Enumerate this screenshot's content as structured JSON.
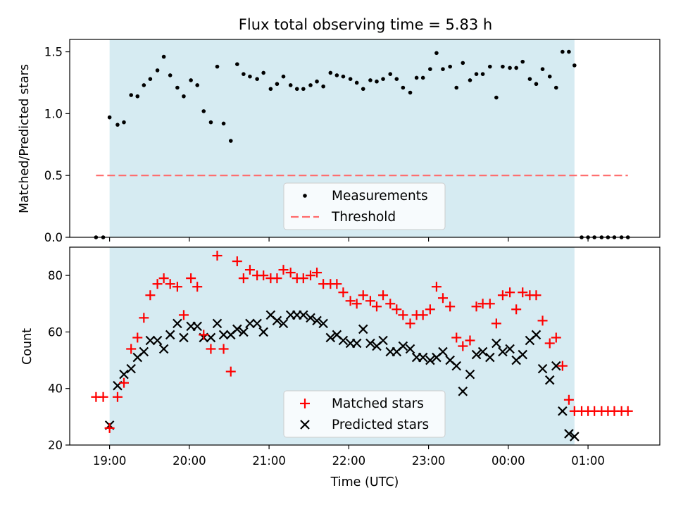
{
  "chart_data": [
    {
      "type": "scatter",
      "title": "Flux total observing time = 5.83 h",
      "xlabel": "",
      "ylabel": "Matched/Predicted stars",
      "xlim": [
        18.5,
        25.9
      ],
      "ylim": [
        0,
        1.6
      ],
      "yticks": [
        0.0,
        0.5,
        1.0,
        1.5
      ],
      "ytick_labels": [
        "0.0",
        "0.5",
        "1.0",
        "1.5"
      ],
      "shaded_span": [
        19.0,
        24.83
      ],
      "threshold": {
        "name": "Threshold",
        "y": 0.5,
        "x": [
          18.83,
          25.5
        ]
      },
      "legend": {
        "placement": "lower center",
        "entries": [
          "Measurements",
          "Threshold"
        ]
      },
      "series": [
        {
          "name": "Measurements",
          "x": [
            18.83,
            18.92,
            19.0,
            19.1,
            19.18,
            19.27,
            19.35,
            19.43,
            19.51,
            19.6,
            19.68,
            19.76,
            19.85,
            19.93,
            20.02,
            20.1,
            20.18,
            20.27,
            20.35,
            20.43,
            20.52,
            20.6,
            20.68,
            20.76,
            20.85,
            20.93,
            21.02,
            21.1,
            21.18,
            21.27,
            21.35,
            21.43,
            21.52,
            21.6,
            21.68,
            21.77,
            21.85,
            21.93,
            22.02,
            22.1,
            22.18,
            22.27,
            22.35,
            22.43,
            22.52,
            22.6,
            22.68,
            22.77,
            22.85,
            22.93,
            23.02,
            23.1,
            23.18,
            23.27,
            23.35,
            23.43,
            23.52,
            23.6,
            23.68,
            23.77,
            23.85,
            23.93,
            24.02,
            24.1,
            24.18,
            24.27,
            24.35,
            24.43,
            24.52,
            24.6,
            24.68,
            24.76,
            24.83,
            24.92,
            25.0,
            25.08,
            25.17,
            25.25,
            25.33,
            25.42,
            25.5
          ],
          "y": [
            0.0,
            0.0,
            0.97,
            0.91,
            0.93,
            1.15,
            1.14,
            1.23,
            1.28,
            1.35,
            1.46,
            1.31,
            1.21,
            1.14,
            1.27,
            1.23,
            1.02,
            0.93,
            1.38,
            0.92,
            0.78,
            1.4,
            1.32,
            1.3,
            1.28,
            1.33,
            1.2,
            1.24,
            1.3,
            1.23,
            1.2,
            1.2,
            1.23,
            1.26,
            1.22,
            1.33,
            1.31,
            1.3,
            1.28,
            1.25,
            1.2,
            1.27,
            1.26,
            1.28,
            1.32,
            1.28,
            1.21,
            1.17,
            1.29,
            1.29,
            1.36,
            1.49,
            1.36,
            1.38,
            1.21,
            1.41,
            1.27,
            1.32,
            1.32,
            1.38,
            1.13,
            1.38,
            1.37,
            1.37,
            1.42,
            1.28,
            1.24,
            1.36,
            1.3,
            1.21,
            1.5,
            1.5,
            1.39,
            0.0,
            0.0,
            0.0,
            0.0,
            0.0,
            0.0,
            0.0,
            0.0
          ],
          "color": "#000000"
        }
      ]
    },
    {
      "type": "scatter",
      "title": "",
      "xlabel": "Time (UTC)",
      "ylabel": "Count",
      "xlim": [
        18.5,
        25.9
      ],
      "ylim": [
        20,
        90
      ],
      "yticks": [
        20,
        40,
        60,
        80
      ],
      "ytick_labels": [
        "20",
        "40",
        "60",
        "80"
      ],
      "xticks": [
        19,
        20,
        21,
        22,
        23,
        24,
        25
      ],
      "xtick_labels": [
        "19:00",
        "20:00",
        "21:00",
        "22:00",
        "23:00",
        "00:00",
        "01:00"
      ],
      "shaded_span": [
        19.0,
        24.83
      ],
      "legend": {
        "placement": "lower center",
        "entries": [
          "Matched stars",
          "Predicted stars"
        ]
      },
      "series": [
        {
          "name": "Matched stars",
          "marker": "plus",
          "color": "#ff0000",
          "x": [
            18.83,
            18.92,
            19.0,
            19.1,
            19.18,
            19.27,
            19.35,
            19.43,
            19.51,
            19.6,
            19.68,
            19.76,
            19.85,
            19.93,
            20.02,
            20.1,
            20.18,
            20.27,
            20.35,
            20.43,
            20.52,
            20.6,
            20.68,
            20.76,
            20.85,
            20.93,
            21.02,
            21.1,
            21.18,
            21.27,
            21.35,
            21.43,
            21.52,
            21.6,
            21.68,
            21.77,
            21.85,
            21.93,
            22.02,
            22.1,
            22.18,
            22.27,
            22.35,
            22.43,
            22.52,
            22.6,
            22.68,
            22.77,
            22.85,
            22.93,
            23.02,
            23.1,
            23.18,
            23.27,
            23.35,
            23.43,
            23.52,
            23.6,
            23.68,
            23.77,
            23.85,
            23.93,
            24.02,
            24.1,
            24.18,
            24.27,
            24.35,
            24.43,
            24.52,
            24.6,
            24.68,
            24.76,
            24.83,
            24.92,
            25.0,
            25.08,
            25.17,
            25.25,
            25.33,
            25.42,
            25.5
          ],
          "y": [
            37,
            37,
            26,
            37,
            42,
            54,
            58,
            65,
            73,
            77,
            79,
            77,
            76,
            66,
            79,
            76,
            59,
            54,
            87,
            54,
            46,
            85,
            79,
            82,
            80,
            80,
            79,
            79,
            82,
            81,
            79,
            79,
            80,
            81,
            77,
            77,
            77,
            74,
            71,
            70,
            73,
            71,
            69,
            73,
            70,
            68,
            66,
            63,
            66,
            66,
            68,
            76,
            72,
            69,
            58,
            55,
            57,
            69,
            70,
            70,
            63,
            73,
            74,
            68,
            74,
            73,
            73,
            64,
            56,
            58,
            48,
            36,
            32,
            32,
            32,
            32,
            32,
            32,
            32,
            32,
            32
          ]
        },
        {
          "name": "Predicted stars",
          "marker": "x",
          "color": "#000000",
          "x": [
            19.0,
            19.1,
            19.18,
            19.27,
            19.35,
            19.43,
            19.51,
            19.6,
            19.68,
            19.76,
            19.85,
            19.93,
            20.02,
            20.1,
            20.18,
            20.27,
            20.35,
            20.43,
            20.52,
            20.6,
            20.68,
            20.76,
            20.85,
            20.93,
            21.02,
            21.1,
            21.18,
            21.27,
            21.35,
            21.43,
            21.52,
            21.6,
            21.68,
            21.77,
            21.85,
            21.93,
            22.02,
            22.1,
            22.18,
            22.27,
            22.35,
            22.43,
            22.52,
            22.6,
            22.68,
            22.77,
            22.85,
            22.93,
            23.02,
            23.1,
            23.18,
            23.27,
            23.35,
            23.43,
            23.52,
            23.6,
            23.68,
            23.77,
            23.85,
            23.93,
            24.02,
            24.1,
            24.18,
            24.27,
            24.35,
            24.43,
            24.52,
            24.6,
            24.68,
            24.76,
            24.83
          ],
          "y": [
            27,
            41,
            45,
            47,
            51,
            53,
            57,
            57,
            54,
            59,
            63,
            58,
            62,
            62,
            58,
            58,
            63,
            59,
            59,
            61,
            60,
            63,
            63,
            60,
            66,
            64,
            63,
            66,
            66,
            66,
            65,
            64,
            63,
            58,
            59,
            57,
            56,
            56,
            61,
            56,
            55,
            57,
            53,
            53,
            55,
            54,
            51,
            51,
            50,
            51,
            53,
            50,
            48,
            39,
            45,
            52,
            53,
            51,
            56,
            53,
            54,
            50,
            52,
            57,
            59,
            47,
            43,
            48,
            32,
            24,
            23
          ]
        }
      ]
    }
  ]
}
